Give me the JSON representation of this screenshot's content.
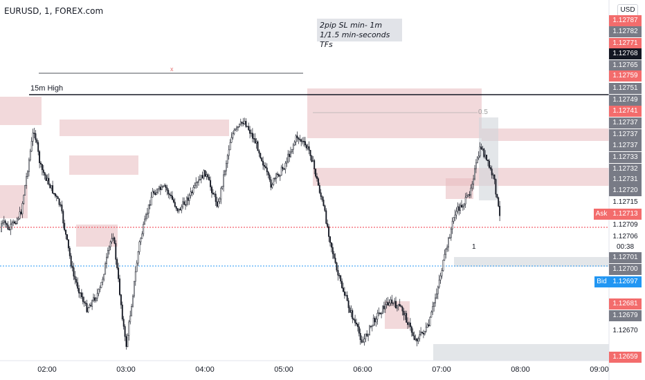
{
  "header": {
    "symbol": "EURUSD, 1, FOREX.com"
  },
  "annotation": {
    "line1": "2pip SL min- 1m",
    "line2": "1/1.5 min-seconds TFs"
  },
  "high_label": "15m High",
  "x_mark": "x",
  "fib_label": "0.5",
  "zone_label": "1",
  "currency_button": "USD",
  "countdown": "00:38",
  "ask_label": "Ask",
  "bid_label": "Bid",
  "colors": {
    "zone_red": "#e8b9bd",
    "zone_grey": "#d0d5da",
    "tag_red": "#f36c6c",
    "tag_grey": "#787b86",
    "tag_black": "#131722",
    "bid_blue": "#2196f3",
    "ask_red": "#f23645"
  },
  "chart_data": {
    "type": "candlestick",
    "title": "EURUSD, 1, FOREX.com",
    "ylim": [
      1.12655,
      1.12792
    ],
    "x_ticks": [
      "02:00",
      "03:00",
      "04:00",
      "05:00",
      "06:00",
      "07:00",
      "08:00",
      "09:00"
    ],
    "price_axis": {
      "labels": [
        {
          "value": "1.12787",
          "style": "red"
        },
        {
          "value": "1.12782",
          "style": "grey"
        },
        {
          "value": "1.12771",
          "style": "red"
        },
        {
          "value": "1.12768",
          "style": "black"
        },
        {
          "value": "1.12765",
          "style": "grey"
        },
        {
          "value": "1.12759",
          "style": "red"
        },
        {
          "value": "1.12751",
          "style": "grey"
        },
        {
          "value": "1.12749",
          "style": "grey"
        },
        {
          "value": "1.12741",
          "style": "red"
        },
        {
          "value": "1.12737",
          "style": "grey"
        },
        {
          "value": "1.12737",
          "style": "grey"
        },
        {
          "value": "1.12737",
          "style": "grey"
        },
        {
          "value": "1.12733",
          "style": "grey"
        },
        {
          "value": "1.12732",
          "style": "grey"
        },
        {
          "value": "1.12731",
          "style": "grey"
        },
        {
          "value": "1.12720",
          "style": "grey"
        },
        {
          "value": "1.12715",
          "style": "plain"
        },
        {
          "value": "1.12713",
          "style": "red"
        },
        {
          "value": "1.12709",
          "style": "plain"
        },
        {
          "value": "1.12706",
          "style": "plain"
        },
        {
          "value": "1.12701",
          "style": "grey"
        },
        {
          "value": "1.12700",
          "style": "grey"
        },
        {
          "value": "1.12697",
          "style": "blue"
        },
        {
          "value": "1.12681",
          "style": "red"
        },
        {
          "value": "1.12679",
          "style": "grey"
        },
        {
          "value": "1.12670",
          "style": "plain"
        },
        {
          "value": "1.12659",
          "style": "red"
        }
      ]
    },
    "levels": {
      "high_15m": 1.12751,
      "ask": 1.12713,
      "bid": 1.12697
    },
    "series": [
      {
        "name": "EURUSD",
        "close_path": [
          [
            "01:30",
            1.12705
          ],
          [
            "01:40",
            1.12712
          ],
          [
            "01:50",
            1.12745
          ],
          [
            "01:55",
            1.1273
          ],
          [
            "02:10",
            1.12715
          ],
          [
            "02:20",
            1.12688
          ],
          [
            "02:30",
            1.12675
          ],
          [
            "02:40",
            1.12682
          ],
          [
            "02:50",
            1.12705
          ],
          [
            "03:00",
            1.1266
          ],
          [
            "03:10",
            1.127
          ],
          [
            "03:20",
            1.1272
          ],
          [
            "03:30",
            1.12722
          ],
          [
            "03:40",
            1.12713
          ],
          [
            "03:50",
            1.1272
          ],
          [
            "04:00",
            1.12728
          ],
          [
            "04:10",
            1.12715
          ],
          [
            "04:20",
            1.12742
          ],
          [
            "04:30",
            1.12748
          ],
          [
            "04:40",
            1.12738
          ],
          [
            "04:50",
            1.12723
          ],
          [
            "05:00",
            1.1273
          ],
          [
            "05:10",
            1.12742
          ],
          [
            "05:20",
            1.12736
          ],
          [
            "05:30",
            1.12715
          ],
          [
            "05:40",
            1.1269
          ],
          [
            "05:50",
            1.12675
          ],
          [
            "06:00",
            1.12662
          ],
          [
            "06:10",
            1.12672
          ],
          [
            "06:20",
            1.12678
          ],
          [
            "06:30",
            1.12675
          ],
          [
            "06:40",
            1.12663
          ],
          [
            "06:50",
            1.12668
          ],
          [
            "07:00",
            1.1269
          ],
          [
            "07:10",
            1.12712
          ],
          [
            "07:20",
            1.12718
          ],
          [
            "07:30",
            1.12738
          ],
          [
            "07:40",
            1.12725
          ],
          [
            "07:45",
            1.12708
          ]
        ]
      }
    ]
  }
}
